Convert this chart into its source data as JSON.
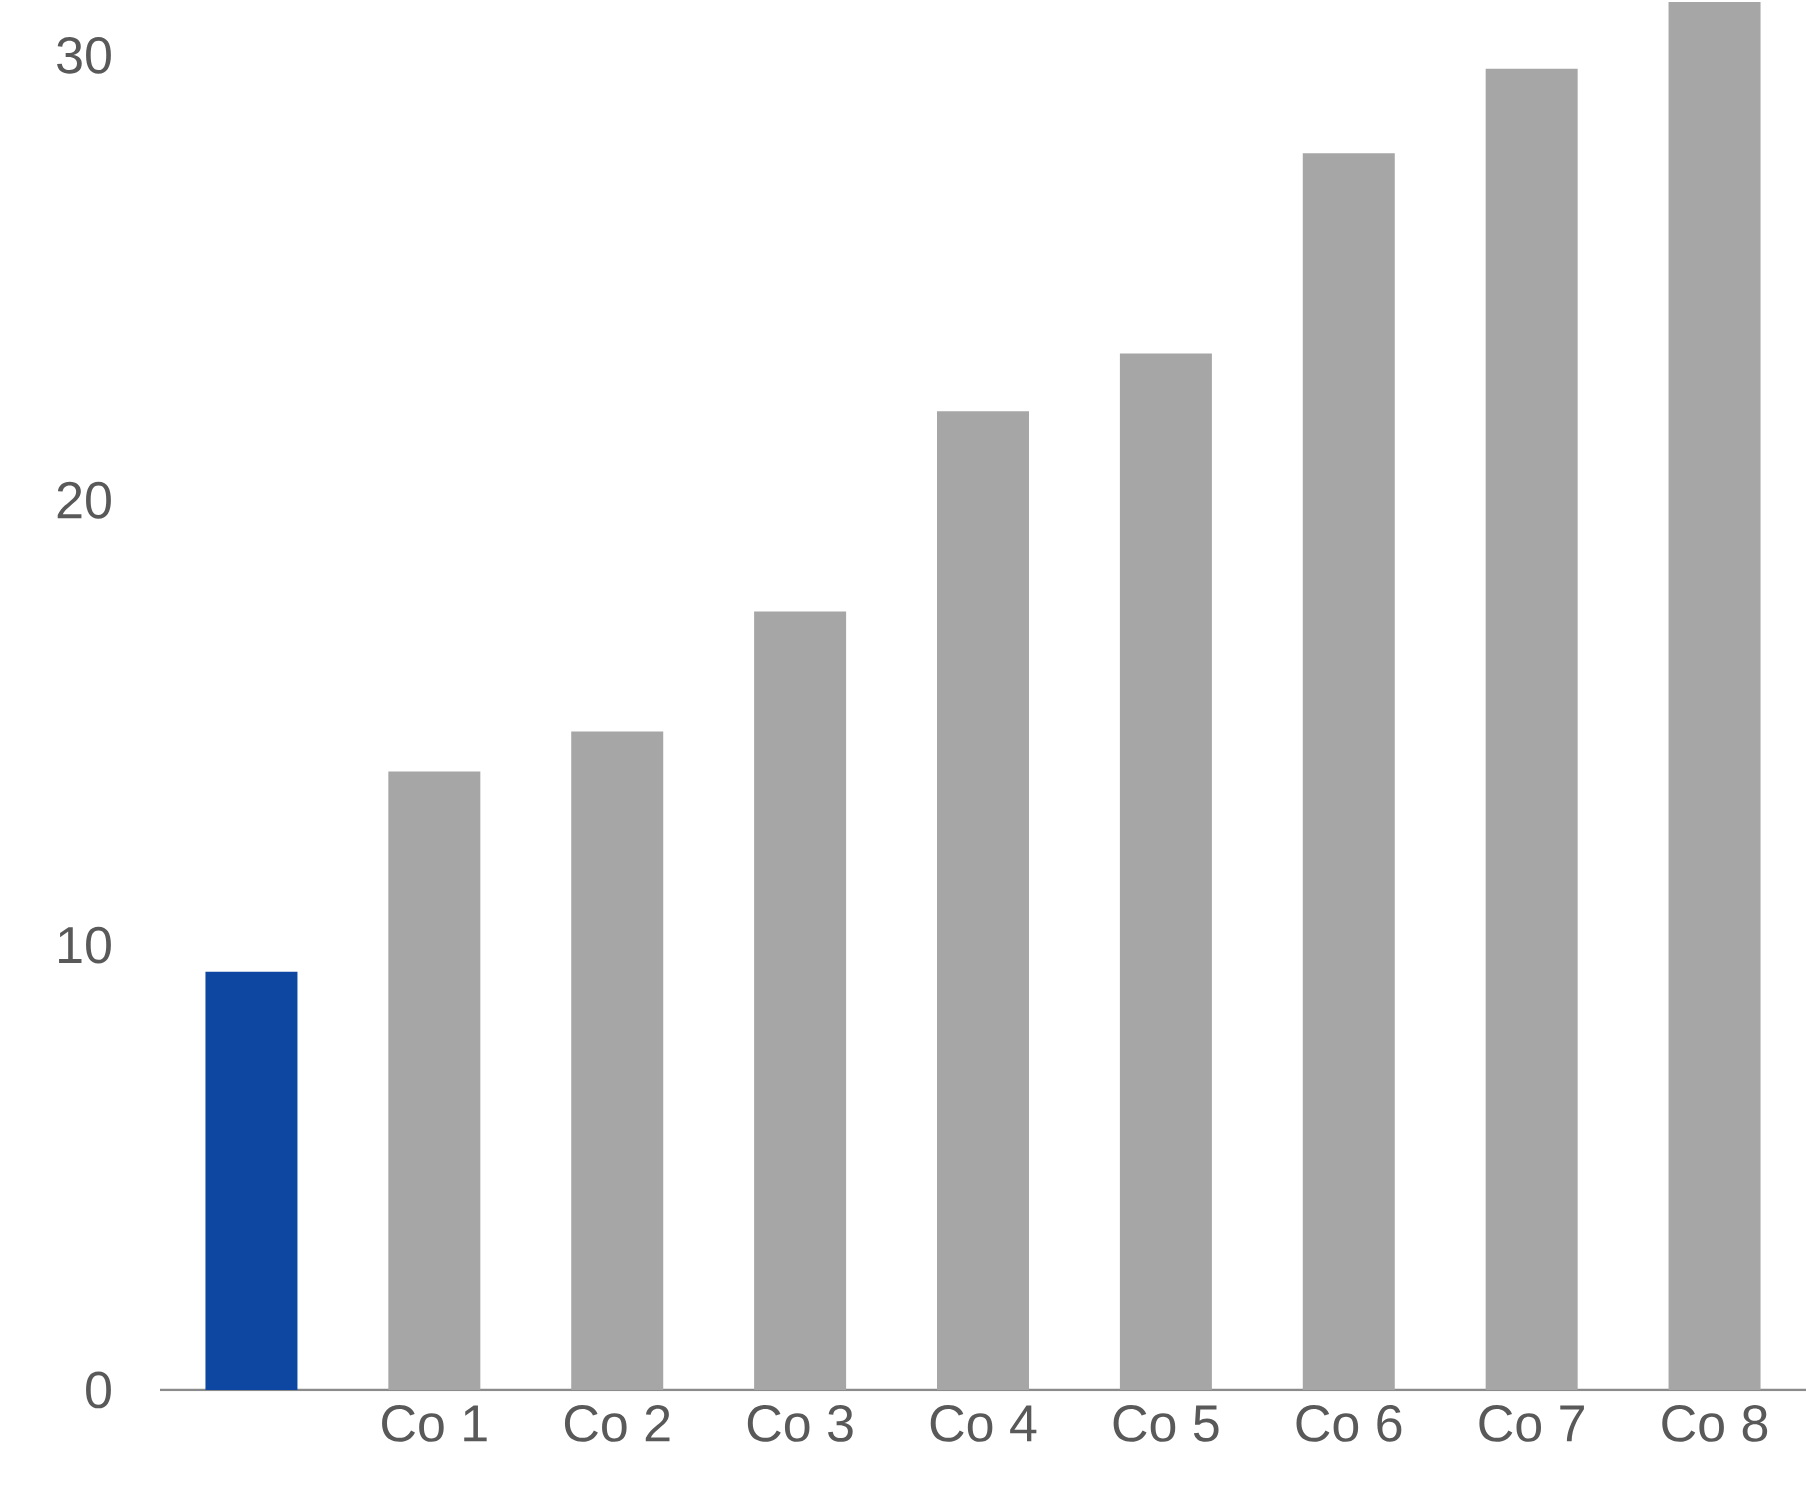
{
  "chart_data": {
    "type": "bar",
    "categories": [
      null,
      "Co 1",
      "Co 2",
      "Co 3",
      "Co 4",
      "Co 5",
      "Co 6",
      "Co 7",
      "Co 8"
    ],
    "values": [
      9.4,
      13.9,
      14.8,
      17.5,
      22.0,
      23.3,
      27.8,
      29.7,
      31.2
    ],
    "colors": [
      "#0d47a1",
      "#a6a6a6",
      "#a6a6a6",
      "#a6a6a6",
      "#a6a6a6",
      "#a6a6a6",
      "#a6a6a6",
      "#a6a6a6",
      "#a6a6a6"
    ],
    "ylim": [
      0,
      31.2
    ],
    "yticks": [
      0,
      10,
      20,
      30
    ]
  }
}
